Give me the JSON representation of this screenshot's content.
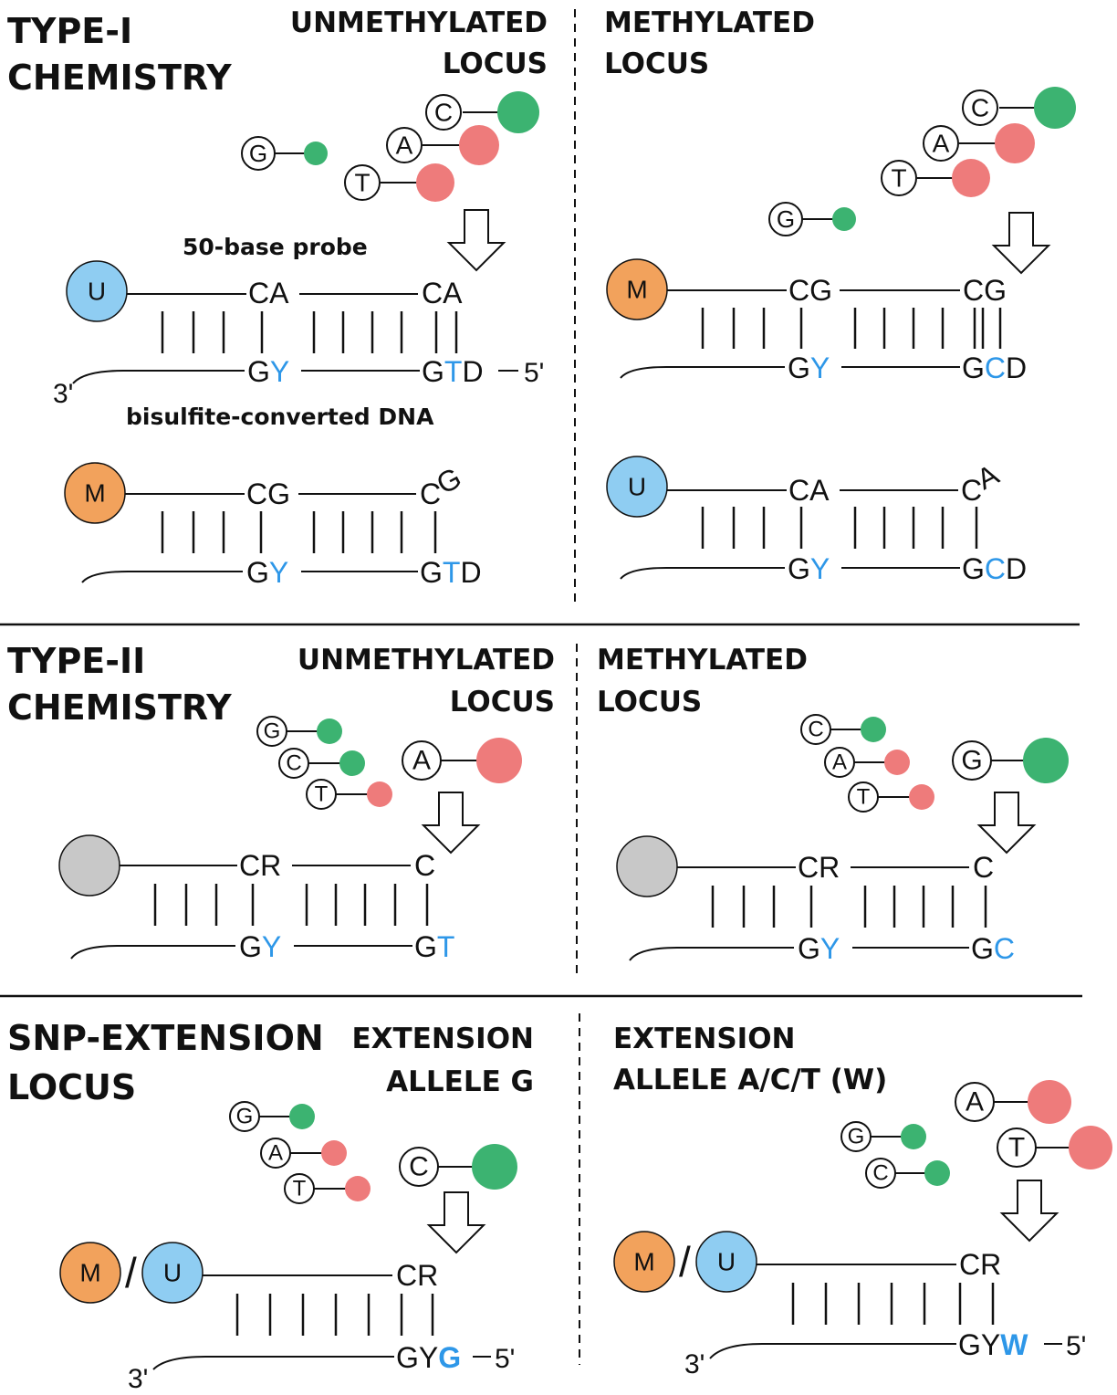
{
  "colors": {
    "green": "#3cb371",
    "red": "#ee7b7b",
    "blue_bead": "#8fcdf2",
    "orange_bead": "#f2a25c",
    "gray_bead": "#c8c8c8",
    "highlight": "#2e97e8"
  },
  "type1": {
    "title_line1": "TYPE-I",
    "title_line2": "CHEMISTRY",
    "left_header_line1": "UNMETHYLATED",
    "left_header_line2": "LOCUS",
    "right_header_line1": "METHYLATED",
    "right_header_line2": "LOCUS",
    "probe_label": "50-base probe",
    "dna_label": "bisulfite-converted DNA",
    "left_top": {
      "bead": "U",
      "probe_a": "CA",
      "probe_b": "CA",
      "dna_a_base": "G",
      "dna_a_var": "Y",
      "dna_b_base": "G",
      "dna_b_var": "T",
      "dna_b_tail": "D",
      "end_3": "3'",
      "end_5": "5'"
    },
    "left_bottom": {
      "bead": "M",
      "probe_a": "CG",
      "probe_b1": "C",
      "probe_b2": "G",
      "dna_a_base": "G",
      "dna_a_var": "Y",
      "dna_b_base": "G",
      "dna_b_var": "T",
      "dna_b_tail": "D"
    },
    "right_top": {
      "bead": "M",
      "probe_a": "CG",
      "probe_b": "CG",
      "dna_a_base": "G",
      "dna_a_var": "Y",
      "dna_b_base": "G",
      "dna_b_var": "C",
      "dna_b_tail": "D"
    },
    "right_bottom": {
      "bead": "U",
      "probe_a": "CA",
      "probe_b1": "C",
      "probe_b2": "A",
      "dna_a_base": "G",
      "dna_a_var": "Y",
      "dna_b_base": "G",
      "dna_b_var": "C",
      "dna_b_tail": "D"
    },
    "nucleotides_left": [
      "C",
      "A",
      "T",
      "G"
    ],
    "nucleotides_right": [
      "C",
      "A",
      "T",
      "G"
    ]
  },
  "type2": {
    "title_line1": "TYPE-II",
    "title_line2": "CHEMISTRY",
    "left_header_line1": "UNMETHYLATED",
    "left_header_line2": "LOCUS",
    "right_header_line1": "METHYLATED",
    "right_header_line2": "LOCUS",
    "left": {
      "probe_a": "CR",
      "probe_b": "C",
      "dna_a_base": "G",
      "dna_a_var": "Y",
      "dna_b_base": "G",
      "dna_b_var": "T"
    },
    "right": {
      "probe_a": "CR",
      "probe_b": "C",
      "dna_a_base": "G",
      "dna_a_var": "Y",
      "dna_b_base": "G",
      "dna_b_var": "C"
    },
    "nucleotides_left": [
      "G",
      "C",
      "T",
      "A"
    ],
    "nucleotides_right": [
      "C",
      "A",
      "T",
      "G"
    ]
  },
  "snp": {
    "title_line1": "SNP-EXTENSION",
    "title_line2": "LOCUS",
    "left_header_line1": "EXTENSION",
    "left_header_line2": "ALLELE G",
    "right_header_line1": "EXTENSION",
    "right_header_line2": "ALLELE A/C/T (W)",
    "left": {
      "bead_m": "M",
      "bead_u": "U",
      "slash": "/",
      "probe": "CR",
      "dna_base": "GY",
      "dna_var": "G",
      "end_3": "3'",
      "end_5": "5'"
    },
    "right": {
      "bead_m": "M",
      "bead_u": "U",
      "slash": "/",
      "probe": "CR",
      "dna_base": "GY",
      "dna_var": "W",
      "end_3": "3'",
      "end_5": "5'"
    },
    "nucleotides_left": [
      "G",
      "A",
      "T",
      "C"
    ],
    "nucleotides_right": [
      "A",
      "T",
      "G",
      "C"
    ]
  }
}
